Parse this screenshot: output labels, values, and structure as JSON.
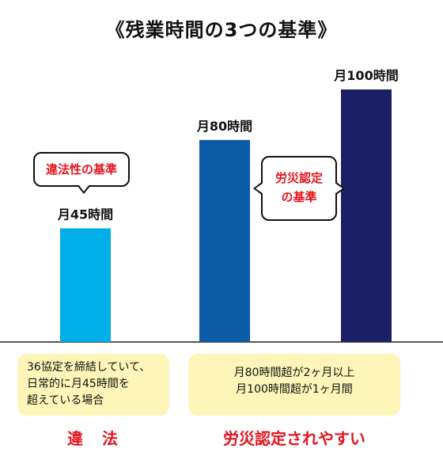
{
  "title": "《残業時間の3つの基準》",
  "chart_data": {
    "type": "bar",
    "categories": [
      "月45時間",
      "月80時間",
      "月100時間"
    ],
    "values": [
      45,
      80,
      100
    ],
    "colors": [
      "#00aee8",
      "#0b5aa6",
      "#1b1f66"
    ],
    "ylabel": "",
    "xlabel": "",
    "unit": "時間",
    "ylim": [
      0,
      100
    ]
  },
  "callouts": {
    "legal_standard": "違法性の基準",
    "rosai_standard_line1": "労災認定",
    "rosai_standard_line2": "の基準"
  },
  "boxes": {
    "illegal": [
      "36協定を締結していて、",
      "日常的に月45時間を",
      "超えている場合"
    ],
    "rosai": [
      "月80時間超が2ヶ月以上",
      "月100時間超が1ヶ月間"
    ]
  },
  "verdicts": {
    "illegal": "違　法",
    "rosai": "労災認定されやすい"
  },
  "colors": {
    "accent_red": "#e5141d",
    "box_yellow": "#fdf6b8"
  }
}
